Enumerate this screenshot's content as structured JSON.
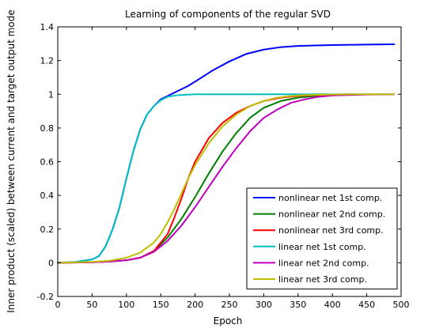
{
  "chart_data": {
    "type": "line",
    "title": "Learning of components of the regular SVD",
    "xlabel": "Epoch",
    "ylabel": "Inner product (scaled) between current and target output mode",
    "xlim": [
      0,
      500
    ],
    "ylim": [
      -0.2,
      1.4
    ],
    "xticks": [
      "0",
      "50",
      "100",
      "150",
      "200",
      "250",
      "300",
      "350",
      "400",
      "450",
      "500"
    ],
    "yticks": [
      "-0.2",
      "0",
      "0.2",
      "0.4",
      "0.6",
      "0.8",
      "1",
      "1.2",
      "1.4"
    ],
    "grid": false,
    "legend_position": "bottom-right",
    "series": [
      {
        "name": "nonlinear net 1st comp.",
        "color": "#0000ff",
        "x": [
          0,
          25,
          50,
          60,
          70,
          80,
          90,
          100,
          110,
          120,
          130,
          140,
          150,
          160,
          175,
          190,
          200,
          225,
          250,
          275,
          300,
          325,
          350,
          375,
          400,
          450,
          490
        ],
        "y": [
          0,
          0.004,
          0.02,
          0.04,
          0.1,
          0.2,
          0.33,
          0.5,
          0.66,
          0.79,
          0.88,
          0.93,
          0.97,
          0.99,
          1.02,
          1.05,
          1.075,
          1.14,
          1.195,
          1.24,
          1.265,
          1.28,
          1.287,
          1.29,
          1.292,
          1.295,
          1.297
        ]
      },
      {
        "name": "nonlinear net 2nd comp.",
        "color": "#007f00",
        "x": [
          0,
          50,
          75,
          100,
          120,
          140,
          160,
          180,
          200,
          220,
          240,
          260,
          280,
          300,
          325,
          350,
          375,
          400,
          425
        ],
        "y": [
          0,
          0.003,
          0.007,
          0.015,
          0.03,
          0.07,
          0.15,
          0.26,
          0.39,
          0.53,
          0.66,
          0.77,
          0.86,
          0.92,
          0.96,
          0.98,
          0.99,
          0.995,
          0.998
        ]
      },
      {
        "name": "nonlinear net 3rd comp.",
        "color": "#ff0000",
        "x": [
          0,
          50,
          75,
          100,
          120,
          140,
          160,
          170,
          180,
          190,
          200,
          220,
          240,
          260,
          280,
          300,
          325,
          350,
          375,
          400,
          430
        ],
        "y": [
          0,
          0.003,
          0.007,
          0.015,
          0.03,
          0.07,
          0.17,
          0.27,
          0.38,
          0.5,
          0.6,
          0.74,
          0.83,
          0.89,
          0.93,
          0.96,
          0.98,
          0.99,
          0.995,
          0.998,
          1.0
        ]
      },
      {
        "name": "linear net 1st comp.",
        "color": "#00bfbf",
        "x": [
          0,
          25,
          50,
          60,
          70,
          80,
          90,
          100,
          110,
          120,
          130,
          140,
          150,
          160,
          175,
          200,
          250,
          300,
          350,
          400,
          450,
          490
        ],
        "y": [
          0,
          0.004,
          0.02,
          0.04,
          0.1,
          0.2,
          0.33,
          0.5,
          0.66,
          0.79,
          0.88,
          0.93,
          0.965,
          0.985,
          0.995,
          1.0,
          1.0,
          1.0,
          1.0,
          1.0,
          1.0,
          1.0
        ]
      },
      {
        "name": "linear net 2nd comp.",
        "color": "#bf00bf",
        "x": [
          0,
          50,
          75,
          100,
          120,
          140,
          160,
          180,
          200,
          220,
          240,
          260,
          280,
          300,
          320,
          340,
          360,
          380,
          400,
          450,
          490
        ],
        "y": [
          0,
          0.003,
          0.007,
          0.015,
          0.03,
          0.065,
          0.13,
          0.22,
          0.33,
          0.45,
          0.57,
          0.68,
          0.78,
          0.86,
          0.91,
          0.95,
          0.97,
          0.985,
          0.993,
          0.998,
          1.0
        ]
      },
      {
        "name": "linear net 3rd comp.",
        "color": "#bfbf00",
        "x": [
          0,
          50,
          75,
          100,
          120,
          140,
          150,
          160,
          170,
          180,
          190,
          200,
          220,
          240,
          260,
          280,
          300,
          320,
          340,
          360,
          400,
          450,
          490
        ],
        "y": [
          0,
          0.005,
          0.012,
          0.03,
          0.06,
          0.12,
          0.17,
          0.24,
          0.32,
          0.41,
          0.5,
          0.58,
          0.71,
          0.81,
          0.88,
          0.93,
          0.96,
          0.98,
          0.99,
          0.995,
          0.999,
          1.0,
          1.0
        ]
      }
    ]
  }
}
